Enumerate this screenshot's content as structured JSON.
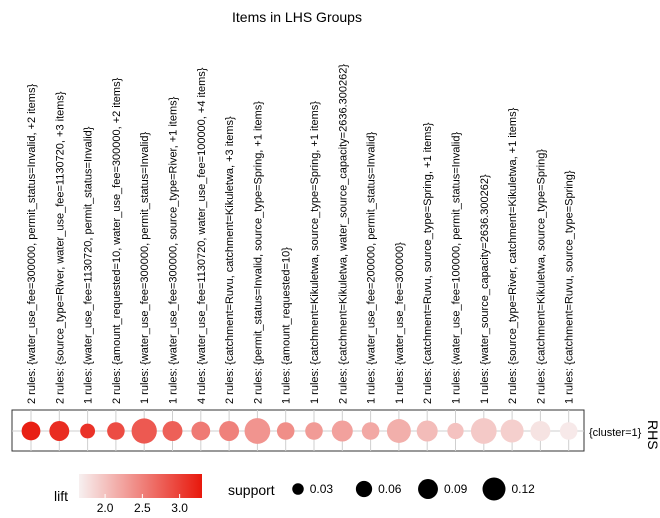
{
  "chart_data": {
    "type": "scatter",
    "title": "Items in LHS Groups",
    "rhs_axis_title": "RHS",
    "rhs_items": [
      "{cluster=1}"
    ],
    "lhs_groups": [
      {
        "label": "2 rules: {water_use_fee=300000, permit_status=Invalid, +2 items}",
        "lift": 3.25,
        "support": 0.08
      },
      {
        "label": "2 rules: {source_type=River, water_use_fee=1130720, +3 items}",
        "lift": 3.15,
        "support": 0.09
      },
      {
        "label": "1 rules: {water_use_fee=1130720, permit_status=Invalid}",
        "lift": 3.1,
        "support": 0.05
      },
      {
        "label": "2 rules: {amount_requested=10, water_use_fee=300000, +2 items}",
        "lift": 2.9,
        "support": 0.07
      },
      {
        "label": "1 rules: {water_use_fee=300000, permit_status=Invalid}",
        "lift": 2.8,
        "support": 0.145
      },
      {
        "label": "1 rules: {water_use_fee=300000, source_type=River, +1 items}",
        "lift": 2.75,
        "support": 0.09
      },
      {
        "label": "4 rules: {water_use_fee=1130720, water_use_fee=100000, +4 items}",
        "lift": 2.55,
        "support": 0.08
      },
      {
        "label": "2 rules: {catchment=Ruvu, catchment=Kikuletwa, +3 items}",
        "lift": 2.5,
        "support": 0.09
      },
      {
        "label": "2 rules: {permit_status=Invalid, source_type=Spring, +1 items}",
        "lift": 2.35,
        "support": 0.15
      },
      {
        "label": "1 rules: {amount_requested=10}",
        "lift": 2.4,
        "support": 0.07
      },
      {
        "label": "1 rules: {catchment=Kikuletwa, source_type=Spring, +1 items}",
        "lift": 2.3,
        "support": 0.07
      },
      {
        "label": "2 rules: {catchment=Kikuletwa, water_source_capacity=2636.300262}",
        "lift": 2.25,
        "support": 0.1
      },
      {
        "label": "1 rules: {water_use_fee=200000, permit_status=Invalid}",
        "lift": 2.2,
        "support": 0.07
      },
      {
        "label": "1 rules: {water_use_fee=300000}",
        "lift": 2.15,
        "support": 0.13
      },
      {
        "label": "2 rules: {catchment=Ruvu, source_type=Spring, +1 items}",
        "lift": 2.05,
        "support": 0.1
      },
      {
        "label": "1 rules: {water_use_fee=100000, permit_status=Invalid}",
        "lift": 2.0,
        "support": 0.06
      },
      {
        "label": "1 rules: {water_source_capacity=2636.300262}",
        "lift": 1.95,
        "support": 0.15
      },
      {
        "label": "2 rules: {source_type=River, catchment=Kikuletwa, +1 items}",
        "lift": 1.9,
        "support": 0.12
      },
      {
        "label": "2 rules: {catchment=Kikuletwa, source_type=Spring}",
        "lift": 1.75,
        "support": 0.09
      },
      {
        "label": "1 rules: {catchment=Ruvu, source_type=Spring}",
        "lift": 1.7,
        "support": 0.07
      }
    ],
    "legend_lift": {
      "title": "lift",
      "ticks": [
        2.0,
        2.5,
        3.0
      ],
      "ticks_text": [
        "2.0",
        "2.5",
        "3.0"
      ],
      "range": [
        1.65,
        3.3
      ],
      "color_low": "#f7f0f0",
      "color_high": "#e8180c"
    },
    "legend_support": {
      "title": "support",
      "values": [
        0.03,
        0.06,
        0.09,
        0.12
      ],
      "values_text": [
        "0.03",
        "0.06",
        "0.09",
        "0.12"
      ]
    },
    "legend_placement": "bottom",
    "grid": true
  }
}
